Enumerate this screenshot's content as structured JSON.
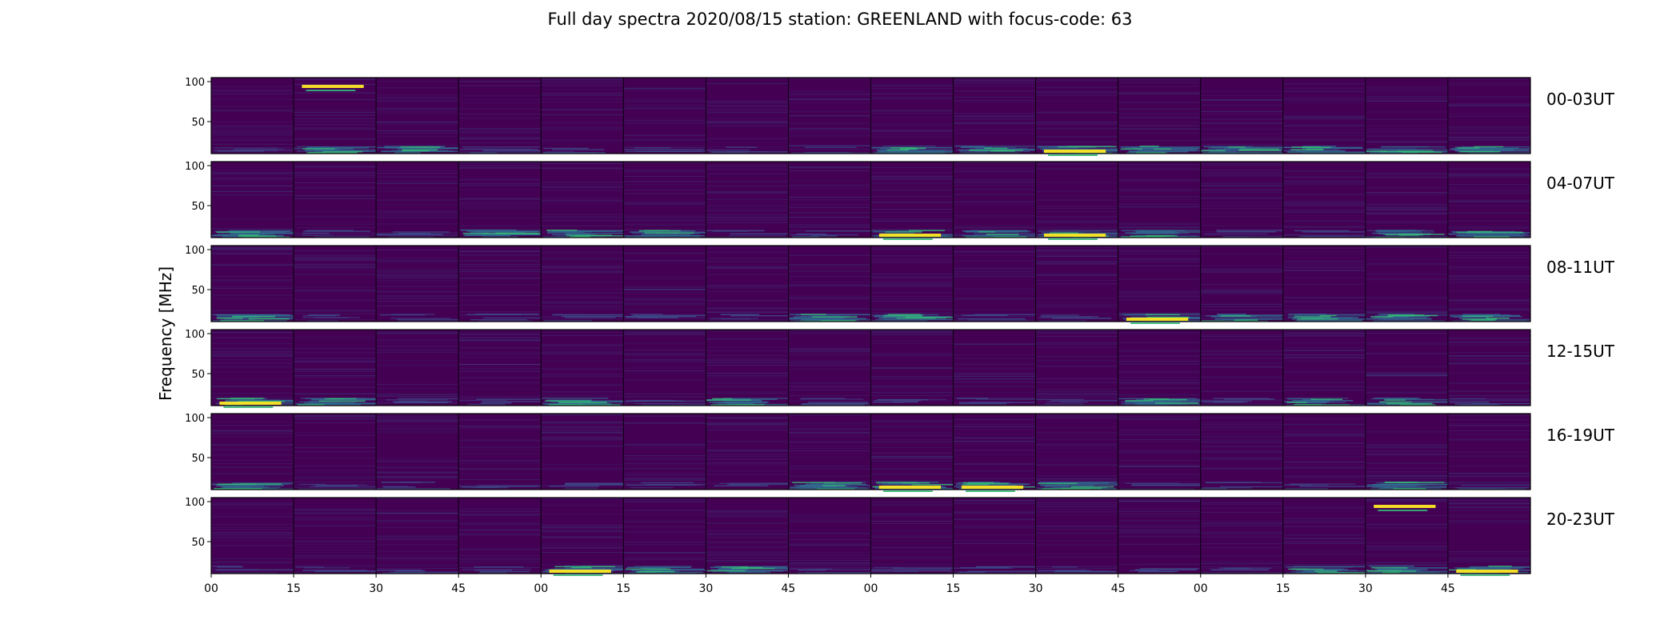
{
  "chart_data": {
    "type": "heatmap",
    "title": "Full day spectra 2020/08/15 station: GREENLAND with focus-code: 63",
    "ylabel": "Frequency [MHz]",
    "xlabel": "",
    "ylim": [
      10,
      105
    ],
    "yticks": [
      "100",
      "50"
    ],
    "xticks": [
      "00",
      "15",
      "30",
      "45",
      "00",
      "15",
      "30",
      "45",
      "00",
      "15",
      "30",
      "45",
      "00",
      "15",
      "30",
      "45"
    ],
    "panels_per_row": 16,
    "rows": [
      {
        "label": "00-03UT",
        "bright_panels": [
          1,
          2,
          8,
          9,
          10,
          11,
          12,
          13,
          14,
          15
        ],
        "hot_panels": [
          1,
          10
        ]
      },
      {
        "label": "04-07UT",
        "bright_panels": [
          0,
          3,
          4,
          5,
          8,
          9,
          10,
          11,
          14,
          15
        ],
        "hot_panels": [
          8,
          10
        ]
      },
      {
        "label": "08-11UT",
        "bright_panels": [
          0,
          7,
          8,
          11,
          12,
          13,
          14,
          15
        ],
        "hot_panels": [
          11
        ]
      },
      {
        "label": "12-15UT",
        "bright_panels": [
          0,
          1,
          4,
          6,
          11,
          13,
          14
        ],
        "hot_panels": [
          0
        ]
      },
      {
        "label": "16-19UT",
        "bright_panels": [
          0,
          7,
          8,
          9,
          10,
          14
        ],
        "hot_panels": [
          8,
          9
        ]
      },
      {
        "label": "20-23UT",
        "bright_panels": [
          4,
          5,
          6,
          13,
          14,
          15
        ],
        "hot_panels": [
          4,
          14,
          15
        ]
      }
    ],
    "colormap": {
      "low": "#440154",
      "mid": "#31688e",
      "high": "#35b779",
      "peak": "#fde725"
    },
    "grid": false,
    "legend": "none"
  }
}
